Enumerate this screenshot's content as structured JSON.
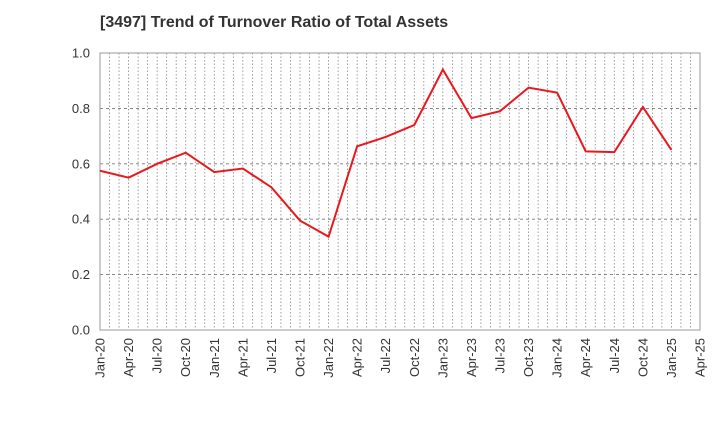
{
  "chart_data": {
    "type": "line",
    "title": "[3497]  Trend of Turnover Ratio of Total Assets",
    "xlabel": "",
    "ylabel": "",
    "ylim": [
      0.0,
      1.0
    ],
    "yticks": [
      "0.0",
      "0.2",
      "0.4",
      "0.6",
      "0.8",
      "1.0"
    ],
    "xticks": [
      "Jan-20",
      "Apr-20",
      "Jul-20",
      "Oct-20",
      "Jan-21",
      "Apr-21",
      "Jul-21",
      "Oct-21",
      "Jan-22",
      "Apr-22",
      "Jul-22",
      "Oct-22",
      "Jan-23",
      "Apr-23",
      "Jul-23",
      "Oct-23",
      "Jan-24",
      "Apr-24",
      "Jul-24",
      "Oct-24",
      "Jan-25",
      "Apr-25"
    ],
    "grid": true,
    "line_color": "#e8191e",
    "series": [
      {
        "x": [
          "Jan-20",
          "Apr-20",
          "Jul-20",
          "Oct-20",
          "Jan-21",
          "Apr-21",
          "Jul-21",
          "Oct-21",
          "Jan-22",
          "Apr-22",
          "Jul-22",
          "Oct-22",
          "Jan-23",
          "Apr-23",
          "Jul-23",
          "Oct-23",
          "Jan-24",
          "Apr-24",
          "Jul-24",
          "Oct-24",
          "Jan-25"
        ],
        "values": [
          0.575,
          0.55,
          0.6,
          0.64,
          0.57,
          0.583,
          0.515,
          0.395,
          0.337,
          0.663,
          0.697,
          0.74,
          0.94,
          0.765,
          0.79,
          0.875,
          0.857,
          0.645,
          0.642,
          0.805,
          0.65
        ]
      }
    ]
  }
}
